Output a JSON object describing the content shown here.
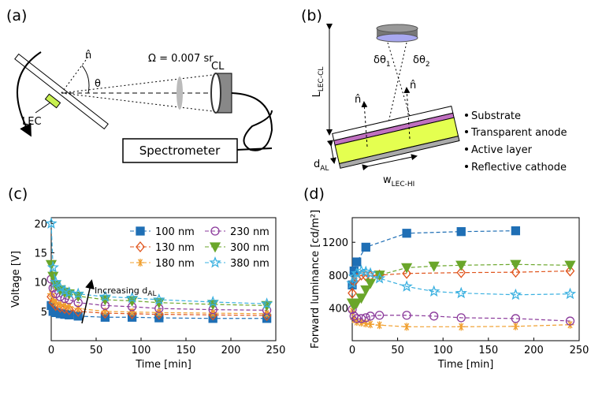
{
  "diagrams": {
    "panel_a": {
      "label": "(a)",
      "n_hat": "n̂",
      "theta": "θ",
      "omega": "Ω = 0.007 sr",
      "cl": "CL",
      "lec": "LEC",
      "spectrometer": "Spectrometer"
    },
    "panel_b": {
      "label": "(b)",
      "l_lec_cl": {
        "text": "L",
        "sub": "LEC-CL"
      },
      "dtheta1": {
        "text": "δθ",
        "sub": "1"
      },
      "dtheta2": {
        "text": "δθ",
        "sub": "2"
      },
      "n_hat_left": "n̂",
      "n_hat_right": "n̂",
      "substrate": "Substrate",
      "transparent_anode": "Transparent anode",
      "active_layer": "Active layer",
      "reflective_cathode": "Reflective cathode",
      "d_al": {
        "text": "d",
        "sub": "AL"
      },
      "w_lec_hi": {
        "text": "w",
        "sub": "LEC-HI"
      }
    }
  },
  "chart_data": [
    {
      "type": "line",
      "panel_label": "(c)",
      "x_label": "Time [min]",
      "y_label": "Voltage [V]",
      "annotation": {
        "text": "Increasing d",
        "sub": "AL"
      },
      "xlim": [
        0,
        250
      ],
      "xticks": [
        0,
        50,
        100,
        150,
        200,
        250
      ],
      "ylim": [
        0,
        21
      ],
      "yticks": [
        5,
        10,
        15,
        20
      ],
      "legend": "upper right",
      "x": [
        0,
        2,
        5,
        10,
        15,
        20,
        30,
        60,
        90,
        120,
        180,
        240
      ],
      "series": [
        {
          "name": "100 nm",
          "color": "#1f6fb5",
          "marker": "square",
          "filled": true,
          "values": [
            6,
            5,
            4.8,
            4.6,
            4.5,
            4.4,
            4.2,
            4,
            4,
            3.9,
            3.8,
            3.8
          ]
        },
        {
          "name": "130 nm",
          "color": "#e0541c",
          "marker": "diamond",
          "filled": false,
          "values": [
            7.5,
            6.5,
            6,
            5.7,
            5.5,
            5.3,
            5,
            4.7,
            4.6,
            4.5,
            4.4,
            4.3
          ]
        },
        {
          "name": "180 nm",
          "color": "#f0a030",
          "marker": "asterisk",
          "filled": false,
          "values": [
            8,
            7,
            6.5,
            6.2,
            6,
            5.8,
            5.5,
            5,
            4.9,
            4.8,
            4.7,
            4.6
          ]
        },
        {
          "name": "230 nm",
          "color": "#8b3a9b",
          "marker": "circle",
          "filled": false,
          "values": [
            10.5,
            9,
            8,
            7.5,
            7.2,
            7,
            6.5,
            6,
            5.8,
            5.5,
            5.3,
            5.2
          ]
        },
        {
          "name": "300 nm",
          "color": "#6aa62a",
          "marker": "triangle",
          "filled": true,
          "values": [
            13,
            11,
            9.5,
            8.7,
            8.3,
            8,
            7.6,
            7,
            6.8,
            6.5,
            6.2,
            6
          ]
        },
        {
          "name": "380 nm",
          "color": "#3ab0e0",
          "marker": "star",
          "filled": false,
          "values": [
            20,
            12.5,
            10,
            9,
            8.5,
            8.2,
            8,
            7.5,
            7.3,
            7,
            6.6,
            6.3
          ]
        }
      ]
    },
    {
      "type": "line",
      "panel_label": "(d)",
      "x_label": "Time [min]",
      "y_label": "Forward luminance [cd/m²]",
      "xlim": [
        0,
        250
      ],
      "xticks": [
        0,
        50,
        100,
        150,
        200,
        250
      ],
      "ylim": [
        0,
        1500
      ],
      "yticks": [
        400,
        800,
        1200
      ],
      "series": [
        {
          "color": "#1f6fb5",
          "marker": "square",
          "filled": true,
          "x": [
            0,
            2,
            5,
            15,
            60,
            120,
            180
          ],
          "values": [
            680,
            850,
            960,
            1140,
            1310,
            1330,
            1340
          ]
        },
        {
          "color": "#e0541c",
          "marker": "diamond",
          "filled": false,
          "x": [
            0,
            2,
            5,
            10,
            15,
            20,
            30,
            60,
            120,
            180,
            240
          ],
          "values": [
            580,
            720,
            760,
            800,
            790,
            790,
            800,
            820,
            830,
            835,
            850
          ]
        },
        {
          "color": "#f0a030",
          "marker": "asterisk",
          "filled": false,
          "x": [
            0,
            2,
            5,
            10,
            15,
            20,
            30,
            60,
            120,
            180,
            240
          ],
          "values": [
            360,
            260,
            230,
            220,
            210,
            200,
            190,
            170,
            170,
            175,
            195
          ]
        },
        {
          "color": "#8b3a9b",
          "marker": "circle",
          "filled": false,
          "x": [
            0,
            2,
            5,
            10,
            15,
            20,
            30,
            60,
            90,
            120,
            180,
            240
          ],
          "values": [
            380,
            300,
            270,
            270,
            280,
            300,
            310,
            310,
            300,
            280,
            270,
            240
          ]
        },
        {
          "color": "#6aa62a",
          "marker": "triangle",
          "filled": true,
          "x": [
            0,
            2,
            5,
            10,
            15,
            20,
            30,
            60,
            90,
            120,
            180,
            240
          ],
          "values": [
            460,
            430,
            460,
            520,
            620,
            700,
            800,
            890,
            910,
            920,
            930,
            920
          ]
        },
        {
          "color": "#3ab0e0",
          "marker": "star",
          "filled": false,
          "x": [
            0,
            2,
            5,
            10,
            15,
            20,
            30,
            60,
            90,
            120,
            180,
            240
          ],
          "values": [
            700,
            780,
            820,
            850,
            840,
            820,
            760,
            660,
            600,
            580,
            560,
            570
          ]
        }
      ]
    }
  ]
}
